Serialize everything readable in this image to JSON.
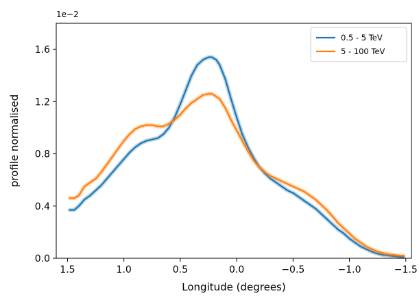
{
  "chart_data": {
    "type": "line",
    "xlabel": "Longitude (degrees)",
    "ylabel": "profile normalised",
    "y_offset_label": "1e−2",
    "xlim": [
      1.6,
      -1.55
    ],
    "ylim": [
      0.0,
      1.8
    ],
    "x_ticks": [
      1.5,
      1.0,
      0.5,
      0.0,
      -0.5,
      -1.0,
      -1.5
    ],
    "x_tick_labels": [
      "1.5",
      "1.0",
      "0.5",
      "0.0",
      "−0.5",
      "−1.0",
      "−1.5"
    ],
    "y_ticks": [
      0.0,
      0.4,
      0.8,
      1.2,
      1.6
    ],
    "y_tick_labels": [
      "0.0",
      "0.4",
      "0.8",
      "1.2",
      "1.6"
    ],
    "grid": false,
    "legend_position": "top-right",
    "series": [
      {
        "name": "0.5 - 5 TeV",
        "color": "#1f77b4",
        "x": [
          1.48,
          1.44,
          1.4,
          1.35,
          1.3,
          1.25,
          1.2,
          1.15,
          1.1,
          1.05,
          1.0,
          0.95,
          0.9,
          0.85,
          0.8,
          0.75,
          0.7,
          0.65,
          0.6,
          0.55,
          0.5,
          0.45,
          0.4,
          0.35,
          0.3,
          0.25,
          0.22,
          0.2,
          0.18,
          0.15,
          0.1,
          0.05,
          0.0,
          -0.05,
          -0.1,
          -0.15,
          -0.2,
          -0.25,
          -0.3,
          -0.35,
          -0.4,
          -0.45,
          -0.5,
          -0.55,
          -0.6,
          -0.65,
          -0.7,
          -0.75,
          -0.8,
          -0.85,
          -0.9,
          -0.95,
          -1.0,
          -1.05,
          -1.1,
          -1.15,
          -1.2,
          -1.25,
          -1.3,
          -1.35,
          -1.4,
          -1.45,
          -1.48
        ],
        "y": [
          0.37,
          0.37,
          0.4,
          0.45,
          0.48,
          0.52,
          0.56,
          0.61,
          0.66,
          0.71,
          0.76,
          0.81,
          0.85,
          0.88,
          0.9,
          0.91,
          0.92,
          0.95,
          1.0,
          1.08,
          1.18,
          1.29,
          1.4,
          1.48,
          1.52,
          1.54,
          1.54,
          1.53,
          1.52,
          1.48,
          1.37,
          1.22,
          1.08,
          0.95,
          0.85,
          0.77,
          0.7,
          0.65,
          0.61,
          0.58,
          0.55,
          0.52,
          0.5,
          0.47,
          0.44,
          0.41,
          0.38,
          0.34,
          0.3,
          0.26,
          0.22,
          0.19,
          0.15,
          0.12,
          0.09,
          0.07,
          0.05,
          0.035,
          0.025,
          0.02,
          0.015,
          0.01,
          0.01
        ]
      },
      {
        "name": "5 - 100 TeV",
        "color": "#ff7f0e",
        "x": [
          1.48,
          1.44,
          1.4,
          1.35,
          1.3,
          1.25,
          1.2,
          1.15,
          1.1,
          1.05,
          1.0,
          0.95,
          0.9,
          0.85,
          0.8,
          0.75,
          0.7,
          0.65,
          0.6,
          0.55,
          0.5,
          0.45,
          0.4,
          0.35,
          0.3,
          0.25,
          0.22,
          0.2,
          0.15,
          0.1,
          0.05,
          0.0,
          -0.05,
          -0.1,
          -0.15,
          -0.2,
          -0.25,
          -0.3,
          -0.35,
          -0.4,
          -0.45,
          -0.5,
          -0.55,
          -0.6,
          -0.65,
          -0.7,
          -0.75,
          -0.8,
          -0.85,
          -0.9,
          -0.95,
          -1.0,
          -1.05,
          -1.1,
          -1.15,
          -1.2,
          -1.25,
          -1.3,
          -1.35,
          -1.4,
          -1.45,
          -1.48
        ],
        "y": [
          0.46,
          0.46,
          0.48,
          0.55,
          0.58,
          0.61,
          0.66,
          0.72,
          0.78,
          0.84,
          0.9,
          0.95,
          0.99,
          1.01,
          1.02,
          1.02,
          1.01,
          1.01,
          1.03,
          1.06,
          1.1,
          1.15,
          1.19,
          1.22,
          1.25,
          1.26,
          1.26,
          1.25,
          1.22,
          1.15,
          1.06,
          0.98,
          0.9,
          0.82,
          0.75,
          0.7,
          0.66,
          0.63,
          0.61,
          0.59,
          0.57,
          0.55,
          0.53,
          0.51,
          0.48,
          0.45,
          0.41,
          0.37,
          0.32,
          0.27,
          0.23,
          0.19,
          0.15,
          0.12,
          0.09,
          0.07,
          0.05,
          0.04,
          0.03,
          0.025,
          0.02,
          0.02
        ]
      }
    ]
  }
}
